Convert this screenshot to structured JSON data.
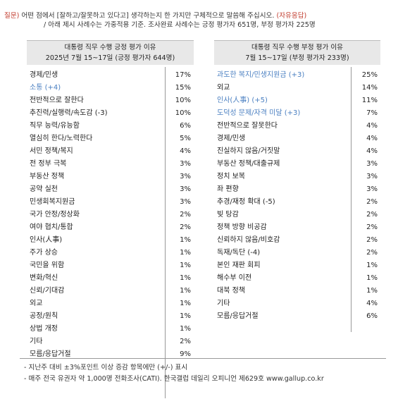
{
  "question": {
    "label": "질문)",
    "text1": " 어떤 점에서 [잘하고/잘못하고 있다고] 생각하는지 한 가지만 구체적으로 말씀해 주십시오. ",
    "text1_tag": "(자유응답)",
    "text2": "/ 아래 제시 사례수는 가중적용 기준. 조사완료 사례수는 긍정 평가자 651명, 부정 평가자 225명"
  },
  "positive": {
    "title": "대통령 직무 수행 긍정 평가 이유",
    "subtitle": "2025년 7월 15~17일 (긍정 평가자 644명)",
    "items": [
      {
        "label": "경제/민생",
        "value": "17%",
        "change": false
      },
      {
        "label": "소통 (+4)",
        "value": "15%",
        "change": true
      },
      {
        "label": "전반적으로 잘한다",
        "value": "10%",
        "change": false
      },
      {
        "label": "추진력/실행력/속도감 (-3)",
        "value": "10%",
        "change": false
      },
      {
        "label": "직무 능력/유능함",
        "value": "6%",
        "change": false
      },
      {
        "label": "열심히 한다/노력한다",
        "value": "5%",
        "change": false
      },
      {
        "label": "서민 정책/복지",
        "value": "4%",
        "change": false
      },
      {
        "label": "전 정부 극복",
        "value": "3%",
        "change": false
      },
      {
        "label": "부동산 정책",
        "value": "3%",
        "change": false
      },
      {
        "label": "공약 실천",
        "value": "3%",
        "change": false
      },
      {
        "label": "민생회복지원금",
        "value": "3%",
        "change": false
      },
      {
        "label": "국가 안정/정상화",
        "value": "2%",
        "change": false
      },
      {
        "label": "여야 협치/통합",
        "value": "2%",
        "change": false
      },
      {
        "label": "인사(人事)",
        "value": "1%",
        "change": false
      },
      {
        "label": "주가 상승",
        "value": "1%",
        "change": false
      },
      {
        "label": "국민을 위함",
        "value": "1%",
        "change": false
      },
      {
        "label": "변화/혁신",
        "value": "1%",
        "change": false
      },
      {
        "label": "신뢰/기대감",
        "value": "1%",
        "change": false
      },
      {
        "label": "외교",
        "value": "1%",
        "change": false
      },
      {
        "label": "공정/원칙",
        "value": "1%",
        "change": false
      },
      {
        "label": "상법 개정",
        "value": "1%",
        "change": false
      },
      {
        "label": "기타",
        "value": "2%",
        "change": false
      },
      {
        "label": "모름/응답거절",
        "value": "9%",
        "change": false
      }
    ]
  },
  "negative": {
    "title": "대통령 직무 수행 부정 평가 이유",
    "subtitle": "7월 15~17일 (부정 평가자 233명)",
    "items": [
      {
        "label": "과도한 복지/민생지원금 (+3)",
        "value": "25%",
        "change": true
      },
      {
        "label": "외교",
        "value": "14%",
        "change": false
      },
      {
        "label": "인사(人事) (+5)",
        "value": "11%",
        "change": true
      },
      {
        "label": "도덕성 문제/자격 미달 (+3)",
        "value": "7%",
        "change": true
      },
      {
        "label": "전반적으로 잘못한다",
        "value": "4%",
        "change": false
      },
      {
        "label": "경제/민생",
        "value": "4%",
        "change": false
      },
      {
        "label": "진실하지 않음/거짓말",
        "value": "4%",
        "change": false
      },
      {
        "label": "부동산 정책/대출규제",
        "value": "3%",
        "change": false
      },
      {
        "label": "정치 보복",
        "value": "3%",
        "change": false
      },
      {
        "label": "좌 편향",
        "value": "3%",
        "change": false
      },
      {
        "label": "추경/재정 확대 (-5)",
        "value": "2%",
        "change": false
      },
      {
        "label": "빚 탕감",
        "value": "2%",
        "change": false
      },
      {
        "label": "정책 방향 비공감",
        "value": "2%",
        "change": false
      },
      {
        "label": "신뢰하지 않음/비호감",
        "value": "2%",
        "change": false
      },
      {
        "label": "독재/독단 (-4)",
        "value": "2%",
        "change": false
      },
      {
        "label": "본인 재판 회피",
        "value": "1%",
        "change": false
      },
      {
        "label": "해수부 이전",
        "value": "1%",
        "change": false
      },
      {
        "label": "대북 정책",
        "value": "1%",
        "change": false
      },
      {
        "label": "기타",
        "value": "4%",
        "change": false
      },
      {
        "label": "모름/응답거절",
        "value": "6%",
        "change": false
      }
    ]
  },
  "notes": [
    "- 지난주 대비 ±3%포인트 이상 증감 항목에만 (+/-) 표시",
    "- 매주 전국 유권자 약 1,000명 전화조사(CATI). 한국갤럽 데일리 오피니언 제629호 www.gallup.co.kr"
  ],
  "colors": {
    "accent_red": "#c0392b",
    "change_blue": "#4a7fc1",
    "header_bg": "#e8e8e8"
  }
}
